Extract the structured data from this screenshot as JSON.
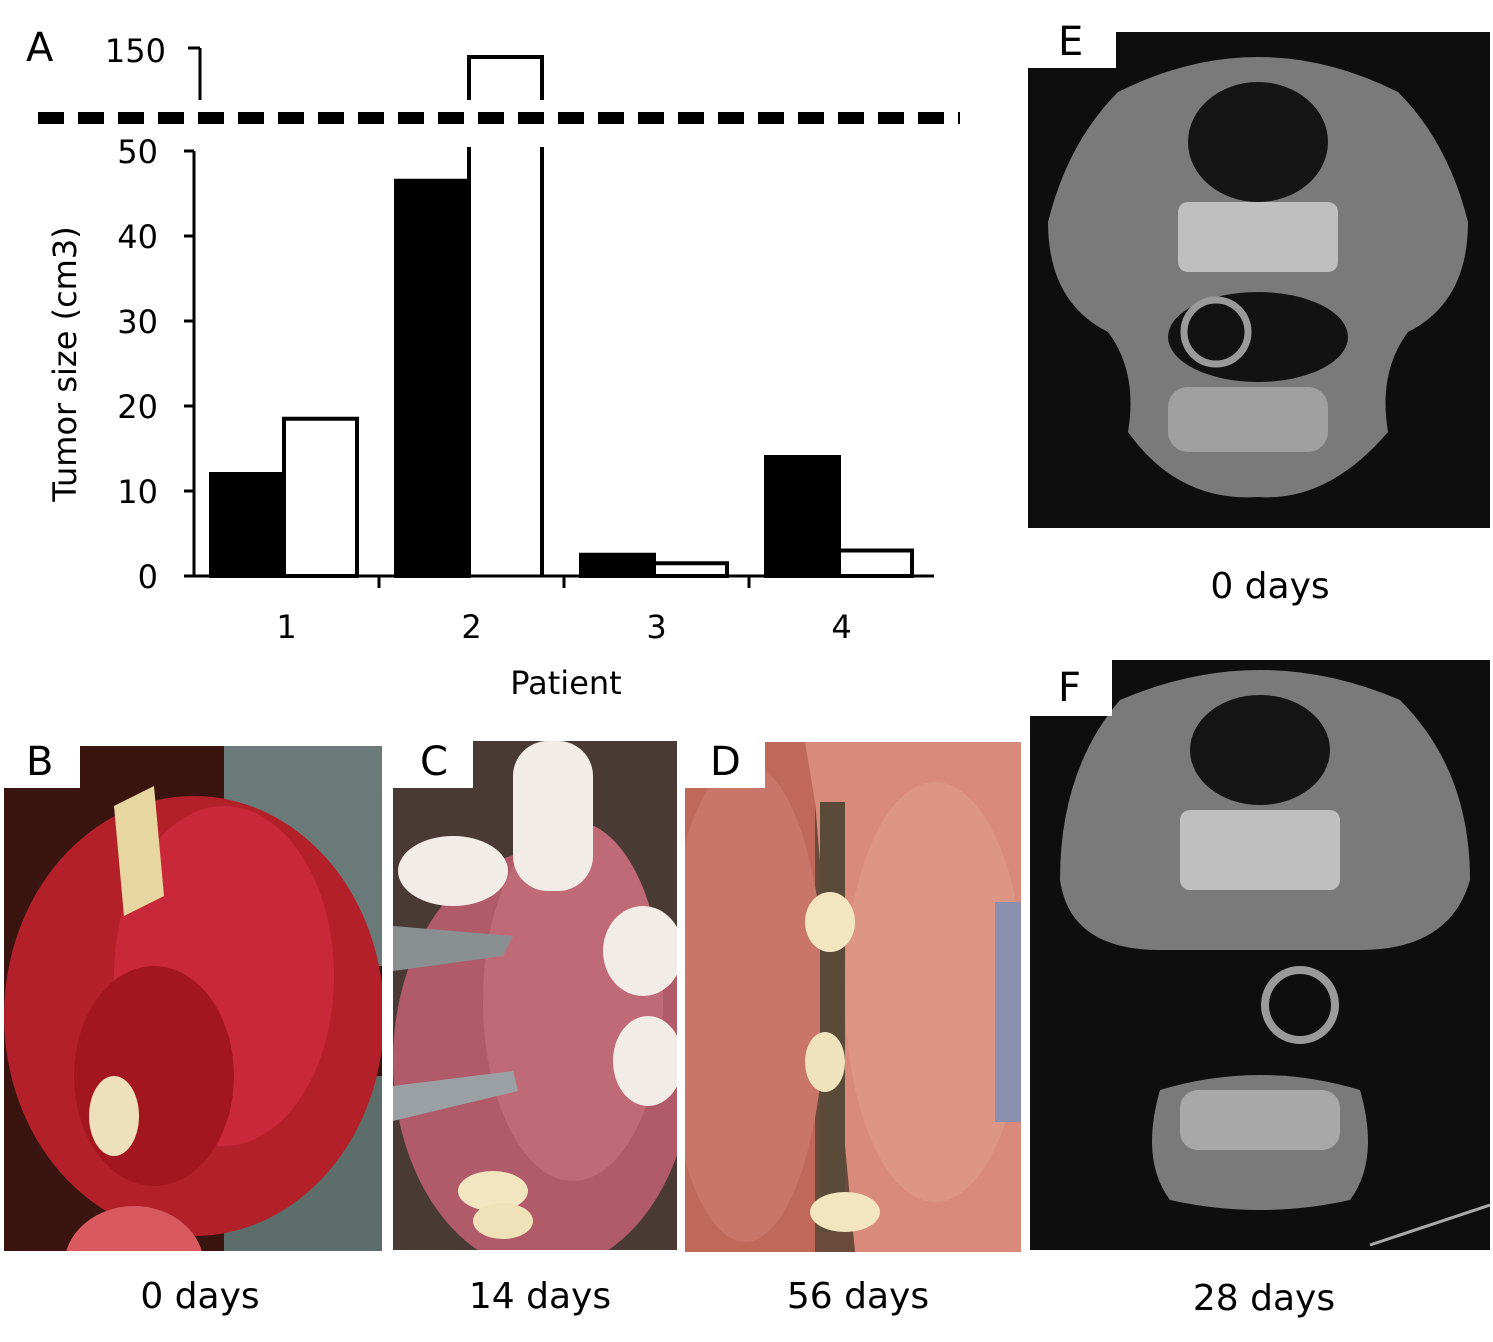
{
  "panels": {
    "A": "A",
    "B": "B",
    "C": "C",
    "D": "D",
    "E": "E",
    "F": "F"
  },
  "captions": {
    "B": "0 days",
    "C": "14 days",
    "D": "56 days",
    "E": "0 days",
    "F": "28 days"
  },
  "chart_data": {
    "type": "bar",
    "categories": [
      "1",
      "2",
      "3",
      "4"
    ],
    "series": [
      {
        "values": [
          12,
          46.5,
          2.5,
          14
        ],
        "color": "#000000"
      },
      {
        "values": [
          18.5,
          145,
          1.5,
          3
        ],
        "color": "#ffffff"
      }
    ],
    "xlabel": "Patient",
    "ylabel": "Tumor size (cm3)",
    "y_ticks": [
      0,
      10,
      20,
      30,
      40,
      50
    ],
    "y_break_tick": 150,
    "ylim_lower": [
      0,
      50
    ],
    "ylim_upper": [
      145,
      150
    ],
    "axis_break": true,
    "grid": false,
    "legend": "none"
  }
}
